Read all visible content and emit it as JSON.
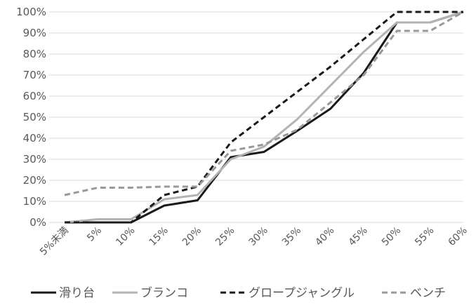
{
  "chart_data": {
    "type": "line",
    "categories": [
      "5%未満",
      "5%",
      "10%",
      "15%",
      "20%",
      "25%",
      "30%",
      "35%",
      "40%",
      "45%",
      "50%",
      "55%",
      "60%"
    ],
    "y_ticks": [
      "0%",
      "10%",
      "20%",
      "30%",
      "40%",
      "50%",
      "60%",
      "70%",
      "80%",
      "90%",
      "100%"
    ],
    "ylim": [
      0,
      100
    ],
    "grid": true,
    "legend_position": "bottom",
    "series": [
      {
        "name": "滑り台",
        "color": "#1a1a1a",
        "dash": "solid",
        "values": [
          0,
          0,
          0,
          8,
          10.5,
          31,
          33.5,
          43.5,
          54,
          71,
          95,
          95,
          100
        ]
      },
      {
        "name": "ブランコ",
        "color": "#b3b3b3",
        "dash": "solid",
        "values": [
          0,
          1.5,
          1.5,
          11,
          13,
          30,
          36,
          49,
          65,
          81,
          95,
          95,
          100
        ]
      },
      {
        "name": "グロープジャングル",
        "color": "#1a1a1a",
        "dash": "dashed",
        "values": [
          0,
          0,
          0,
          13,
          17,
          38,
          50,
          62,
          74,
          87,
          100,
          100,
          100
        ]
      },
      {
        "name": "ベンチ",
        "color": "#999999",
        "dash": "dashed",
        "values": [
          13,
          16.5,
          16.5,
          17,
          17,
          34,
          37,
          44,
          57,
          70,
          91,
          91,
          100
        ]
      }
    ]
  }
}
